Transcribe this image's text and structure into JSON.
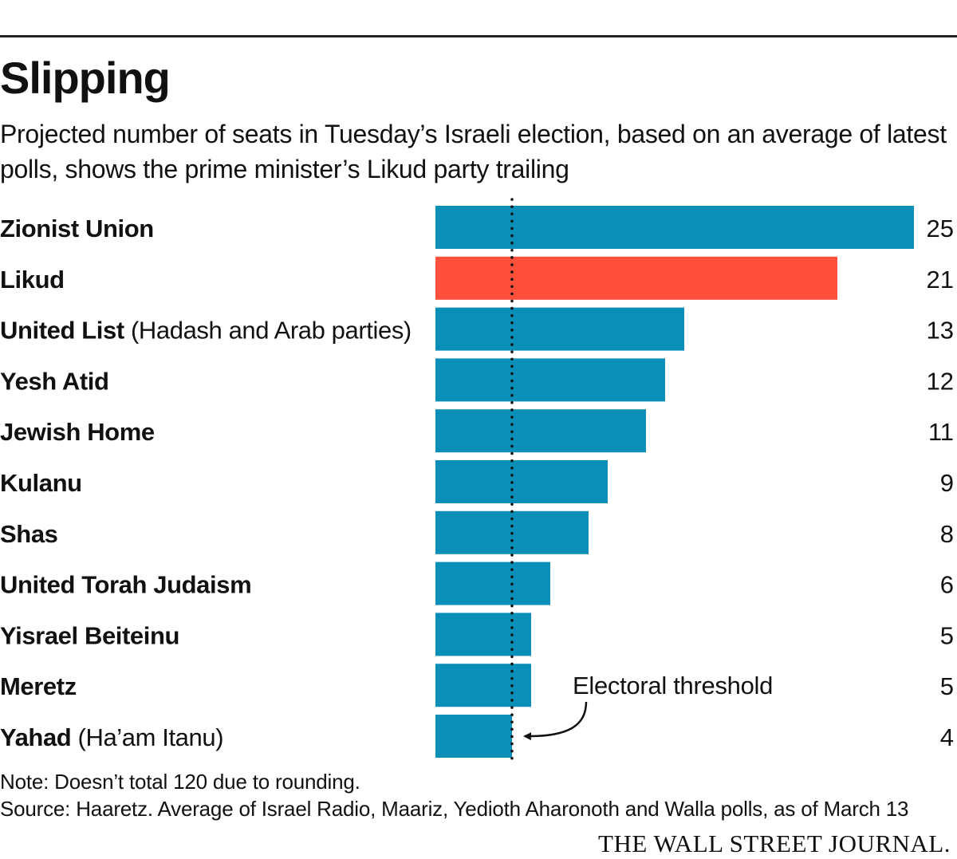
{
  "header": {
    "title": "Slipping",
    "subtitle": "Projected number of seats in Tuesday’s Israeli election, based on an average of latest polls, shows the prime minister’s Likud party trailing"
  },
  "chart_data": {
    "type": "bar",
    "orientation": "horizontal",
    "categories": [
      {
        "name": "Zionist Union",
        "suffix": "",
        "value": 25,
        "highlight": false
      },
      {
        "name": "Likud",
        "suffix": "",
        "value": 21,
        "highlight": true
      },
      {
        "name": "United List",
        "suffix": " (Hadash and Arab parties)",
        "value": 13,
        "highlight": false
      },
      {
        "name": "Yesh Atid",
        "suffix": "",
        "value": 12,
        "highlight": false
      },
      {
        "name": "Jewish Home",
        "suffix": "",
        "value": 11,
        "highlight": false
      },
      {
        "name": "Kulanu",
        "suffix": "",
        "value": 9,
        "highlight": false
      },
      {
        "name": "Shas",
        "suffix": "",
        "value": 8,
        "highlight": false
      },
      {
        "name": "United Torah Judaism",
        "suffix": "",
        "value": 6,
        "highlight": false
      },
      {
        "name": "Yisrael Beiteinu",
        "suffix": "",
        "value": 5,
        "highlight": false
      },
      {
        "name": "Meretz",
        "suffix": "",
        "value": 5,
        "highlight": false
      },
      {
        "name": "Yahad",
        "suffix": " (Ha’am Itanu)",
        "value": 4,
        "highlight": false
      }
    ],
    "xlim": [
      0,
      25
    ],
    "threshold": {
      "value": 4,
      "label": "Electoral threshold"
    },
    "colors": {
      "bar": "#0a8fb8",
      "highlight": "#ff503c",
      "text": "#111111"
    }
  },
  "footer": {
    "note": "Note: Doesn’t total 120 due to rounding.",
    "source": "Source: Haaretz. Average of Israel Radio, Maariz, Yedioth Aharonoth and Walla polls, as of March 13",
    "brand": "THE WALL STREET JOURNAL."
  }
}
